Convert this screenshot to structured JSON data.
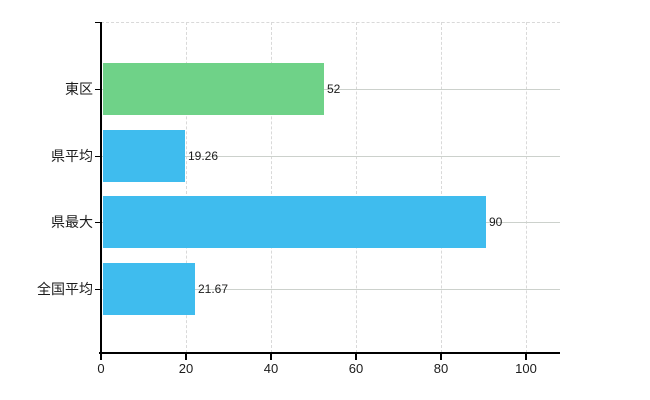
{
  "chart_data": {
    "type": "bar",
    "orientation": "horizontal",
    "title": "",
    "xlabel": "",
    "ylabel": "",
    "categories": [
      "東区",
      "県平均",
      "県最大",
      "全国平均"
    ],
    "values": [
      52,
      19.26,
      90,
      21.67
    ],
    "value_labels": [
      "52",
      "19.26",
      "90",
      "21.67"
    ],
    "bar_colors": [
      "#6fd288",
      "#3fbcee",
      "#3fbcee",
      "#3fbcee"
    ],
    "x_ticks": [
      0,
      20,
      40,
      60,
      80,
      100
    ],
    "x_tick_labels": [
      "0",
      "20",
      "40",
      "60",
      "80",
      "100"
    ],
    "xlim": [
      0,
      108
    ],
    "grid": true,
    "legend": "none",
    "colors": {
      "highlight_bar": "#6fd288",
      "default_bar": "#3fbcee",
      "gridline_dashed": "#d9d9d9",
      "gridline_category": "#ccd1cc",
      "axis": "#000000",
      "text": "#1c1c1c",
      "background": "#ffffff"
    }
  }
}
